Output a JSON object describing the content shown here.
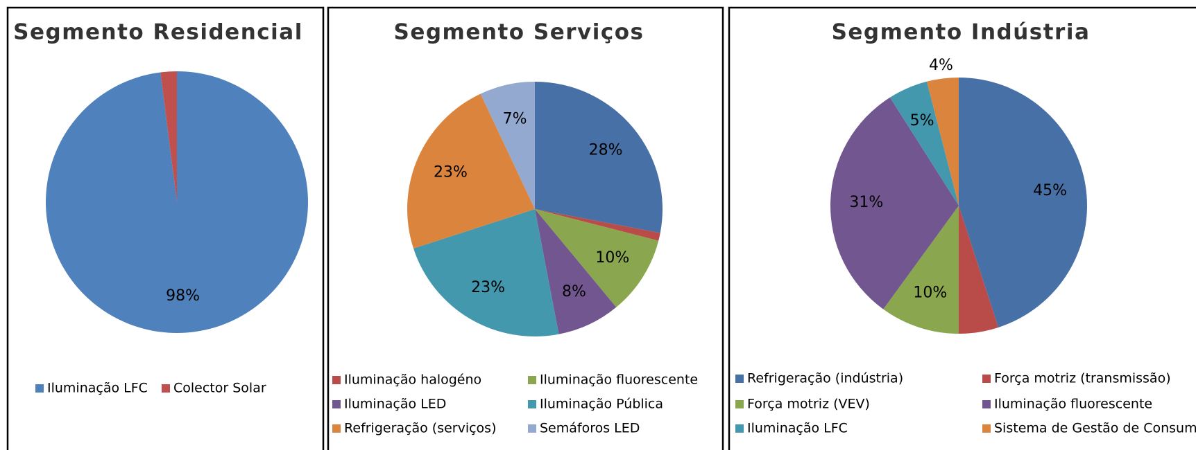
{
  "chart_data": [
    {
      "type": "pie",
      "title": "Segmento Residencial",
      "categories": [
        "Iluminação LFC",
        "Colector Solar"
      ],
      "values": [
        98,
        2
      ],
      "value_labels": [
        "98%",
        null
      ],
      "colors": [
        "#4f81bd",
        "#c0504d"
      ]
    },
    {
      "type": "pie",
      "title": "Segmento Serviços",
      "categories": [
        null,
        "Iluminação halogéno",
        "Iluminação fluorescente",
        "Iluminação LED",
        "Iluminação Pública",
        "Refrigeração (serviços)",
        "Semáforos LED"
      ],
      "values": [
        28,
        1,
        10,
        8,
        23,
        23,
        7
      ],
      "value_labels": [
        "28%",
        null,
        "10%",
        "8%",
        "23%",
        "23%",
        "7%"
      ],
      "colors": [
        "#4770a6",
        "#b94b48",
        "#8aa64f",
        "#72568f",
        "#4398ae",
        "#db843d",
        "#93a9cf"
      ]
    },
    {
      "type": "pie",
      "title": "Segmento Indústria",
      "categories": [
        "Refrigeração (indústria)",
        "Força motriz (transmissão)",
        "Força motriz (VEV)",
        "Iluminação fluorescente",
        "Iluminação LFC",
        "Sistema de Gestão de Consumos"
      ],
      "values": [
        45,
        5,
        10,
        31,
        5,
        4
      ],
      "value_labels": [
        "45%",
        null,
        "10%",
        "31%",
        "5%",
        "4%"
      ],
      "colors": [
        "#4770a6",
        "#b94b48",
        "#8aa64f",
        "#72568f",
        "#4398ae",
        "#db843d"
      ]
    }
  ]
}
